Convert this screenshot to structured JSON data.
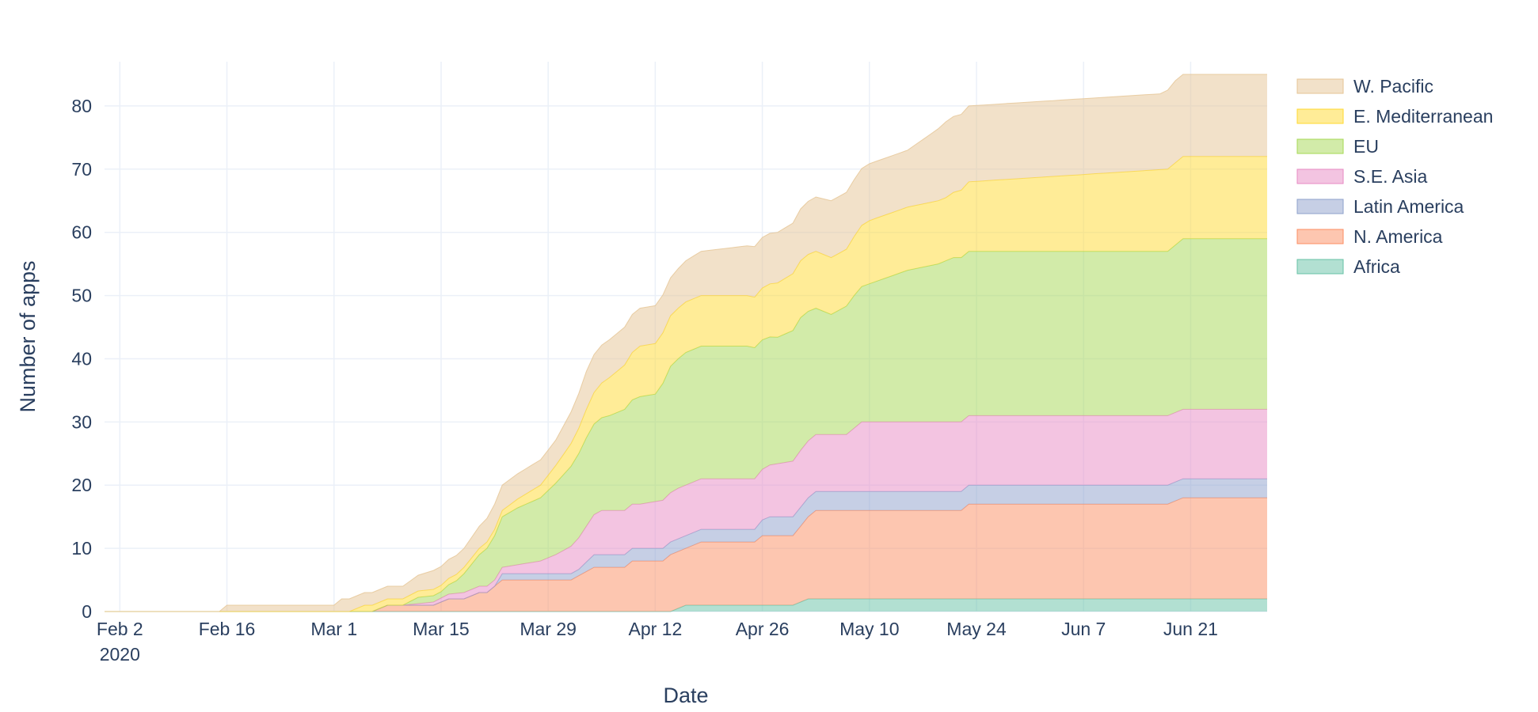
{
  "chart_data": {
    "type": "area",
    "stacked": true,
    "xlabel": "Date",
    "ylabel": "Number of apps",
    "x_range": [
      "2020-01-31",
      "2020-07-01"
    ],
    "ylim": [
      0,
      87
    ],
    "y_ticks": [
      0,
      10,
      20,
      30,
      40,
      50,
      60,
      70,
      80
    ],
    "x_ticks": [
      {
        "date": "2020-02-02",
        "label": "Feb 2",
        "sublabel": "2020"
      },
      {
        "date": "2020-02-16",
        "label": "Feb 16",
        "sublabel": ""
      },
      {
        "date": "2020-03-01",
        "label": "Mar 1",
        "sublabel": ""
      },
      {
        "date": "2020-03-15",
        "label": "Mar 15",
        "sublabel": ""
      },
      {
        "date": "2020-03-29",
        "label": "Mar 29",
        "sublabel": ""
      },
      {
        "date": "2020-04-12",
        "label": "Apr 12",
        "sublabel": ""
      },
      {
        "date": "2020-04-26",
        "label": "Apr 26",
        "sublabel": ""
      },
      {
        "date": "2020-05-10",
        "label": "May 10",
        "sublabel": ""
      },
      {
        "date": "2020-05-24",
        "label": "May 24",
        "sublabel": ""
      },
      {
        "date": "2020-06-07",
        "label": "Jun 7",
        "sublabel": ""
      },
      {
        "date": "2020-06-21",
        "label": "Jun 21",
        "sublabel": ""
      }
    ],
    "grid": true,
    "legend_position": "top-right",
    "series": [
      {
        "name": "Africa",
        "color": "#66c2a5",
        "points": [
          [
            "2020-01-31",
            0
          ],
          [
            "2020-04-14",
            0
          ],
          [
            "2020-04-16",
            1
          ],
          [
            "2020-04-30",
            1
          ],
          [
            "2020-05-02",
            2
          ],
          [
            "2020-07-01",
            2
          ]
        ]
      },
      {
        "name": "N. America",
        "color": "#fc8d62",
        "points": [
          [
            "2020-01-31",
            0
          ],
          [
            "2020-03-06",
            0
          ],
          [
            "2020-03-08",
            1
          ],
          [
            "2020-03-14",
            1
          ],
          [
            "2020-03-16",
            2
          ],
          [
            "2020-03-18",
            2
          ],
          [
            "2020-03-20",
            3
          ],
          [
            "2020-03-21",
            3
          ],
          [
            "2020-03-23",
            5
          ],
          [
            "2020-03-31",
            5
          ],
          [
            "2020-04-01",
            5
          ],
          [
            "2020-04-04",
            7
          ],
          [
            "2020-04-08",
            7
          ],
          [
            "2020-04-09",
            8
          ],
          [
            "2020-04-13",
            8
          ],
          [
            "2020-04-14",
            9
          ],
          [
            "2020-04-16",
            9
          ],
          [
            "2020-04-18",
            10
          ],
          [
            "2020-04-25",
            10
          ],
          [
            "2020-04-26",
            11
          ],
          [
            "2020-04-30",
            11
          ],
          [
            "2020-05-03",
            14
          ],
          [
            "2020-05-22",
            14
          ],
          [
            "2020-05-23",
            15
          ],
          [
            "2020-06-18",
            15
          ],
          [
            "2020-06-20",
            16
          ],
          [
            "2020-07-01",
            16
          ]
        ]
      },
      {
        "name": "Latin America",
        "color": "#8da0cb",
        "points": [
          [
            "2020-01-31",
            0
          ],
          [
            "2020-03-22",
            0
          ],
          [
            "2020-03-23",
            1
          ],
          [
            "2020-04-02",
            1
          ],
          [
            "2020-04-04",
            2
          ],
          [
            "2020-04-25",
            2
          ],
          [
            "2020-04-27",
            3
          ],
          [
            "2020-05-01",
            3
          ],
          [
            "2020-05-03",
            3
          ],
          [
            "2020-06-18",
            3
          ],
          [
            "2020-06-20",
            3
          ],
          [
            "2020-07-01",
            3
          ]
        ]
      },
      {
        "name": "S.E. Asia",
        "color": "#e78ac3",
        "points": [
          [
            "2020-01-31",
            0
          ],
          [
            "2020-03-08",
            0
          ],
          [
            "2020-03-10",
            0
          ],
          [
            "2020-03-18",
            1
          ],
          [
            "2020-03-23",
            1
          ],
          [
            "2020-03-28",
            2
          ],
          [
            "2020-03-30",
            3
          ],
          [
            "2020-04-02",
            5
          ],
          [
            "2020-04-05",
            7
          ],
          [
            "2020-04-10",
            7
          ],
          [
            "2020-04-15",
            8
          ],
          [
            "2020-04-26",
            8
          ],
          [
            "2020-05-01",
            9
          ],
          [
            "2020-05-07",
            9
          ],
          [
            "2020-05-09",
            11
          ],
          [
            "2020-05-17",
            11
          ],
          [
            "2020-05-19",
            11
          ],
          [
            "2020-07-01",
            11
          ]
        ]
      },
      {
        "name": "EU",
        "color": "#a6d854",
        "points": [
          [
            "2020-01-31",
            0
          ],
          [
            "2020-03-10",
            0
          ],
          [
            "2020-03-12",
            1
          ],
          [
            "2020-03-15",
            1
          ],
          [
            "2020-03-17",
            2
          ],
          [
            "2020-03-19",
            4
          ],
          [
            "2020-03-21",
            6
          ],
          [
            "2020-03-23",
            8
          ],
          [
            "2020-03-25",
            9
          ],
          [
            "2020-03-28",
            10
          ],
          [
            "2020-03-31",
            12
          ],
          [
            "2020-04-03",
            14
          ],
          [
            "2020-04-06",
            15
          ],
          [
            "2020-04-10",
            17
          ],
          [
            "2020-04-12",
            17
          ],
          [
            "2020-04-14",
            20
          ],
          [
            "2020-04-16",
            21
          ],
          [
            "2020-04-24",
            21
          ],
          [
            "2020-04-28",
            20
          ],
          [
            "2020-05-01",
            21
          ],
          [
            "2020-05-05",
            19
          ],
          [
            "2020-05-08",
            21
          ],
          [
            "2020-05-15",
            24
          ],
          [
            "2020-05-19",
            25
          ],
          [
            "2020-05-21",
            26
          ],
          [
            "2020-06-18",
            26
          ],
          [
            "2020-06-20",
            27
          ],
          [
            "2020-07-01",
            27
          ]
        ]
      },
      {
        "name": "E. Mediterranean",
        "color": "#ffd92f",
        "points": [
          [
            "2020-01-31",
            0
          ],
          [
            "2020-03-03",
            0
          ],
          [
            "2020-03-05",
            1
          ],
          [
            "2020-03-08",
            1
          ],
          [
            "2020-03-12",
            1
          ],
          [
            "2020-03-23",
            1
          ],
          [
            "2020-03-28",
            2
          ],
          [
            "2020-04-02",
            4
          ],
          [
            "2020-04-06",
            6
          ],
          [
            "2020-04-10",
            8
          ],
          [
            "2020-04-13",
            8
          ],
          [
            "2020-04-16",
            8
          ],
          [
            "2020-04-25",
            8
          ],
          [
            "2020-04-30",
            9
          ],
          [
            "2020-05-07",
            9
          ],
          [
            "2020-05-10",
            10
          ],
          [
            "2020-05-20",
            10
          ],
          [
            "2020-05-23",
            11
          ],
          [
            "2020-06-18",
            13
          ],
          [
            "2020-06-20",
            13
          ],
          [
            "2020-07-01",
            13
          ]
        ]
      },
      {
        "name": "W. Pacific",
        "color": "#e5c494",
        "points": [
          [
            "2020-01-31",
            0
          ],
          [
            "2020-02-15",
            0
          ],
          [
            "2020-02-16",
            1
          ],
          [
            "2020-03-01",
            1
          ],
          [
            "2020-03-02",
            2
          ],
          [
            "2020-03-08",
            2
          ],
          [
            "2020-03-10",
            2
          ],
          [
            "2020-03-14",
            3
          ],
          [
            "2020-03-18",
            3
          ],
          [
            "2020-03-22",
            4
          ],
          [
            "2020-03-26",
            4
          ],
          [
            "2020-03-30",
            4
          ],
          [
            "2020-04-03",
            6
          ],
          [
            "2020-04-07",
            6
          ],
          [
            "2020-04-10",
            6
          ],
          [
            "2020-04-14",
            6
          ],
          [
            "2020-04-18",
            7
          ],
          [
            "2020-04-25",
            8
          ],
          [
            "2020-04-30",
            8
          ],
          [
            "2020-05-05",
            9
          ],
          [
            "2020-05-09",
            9
          ],
          [
            "2020-05-12",
            9
          ],
          [
            "2020-05-15",
            9
          ],
          [
            "2020-05-20",
            12
          ],
          [
            "2020-05-25",
            12
          ],
          [
            "2020-06-01",
            12
          ],
          [
            "2020-06-10",
            12
          ],
          [
            "2020-06-17",
            12
          ],
          [
            "2020-06-19",
            13
          ],
          [
            "2020-07-01",
            13
          ]
        ]
      }
    ]
  }
}
